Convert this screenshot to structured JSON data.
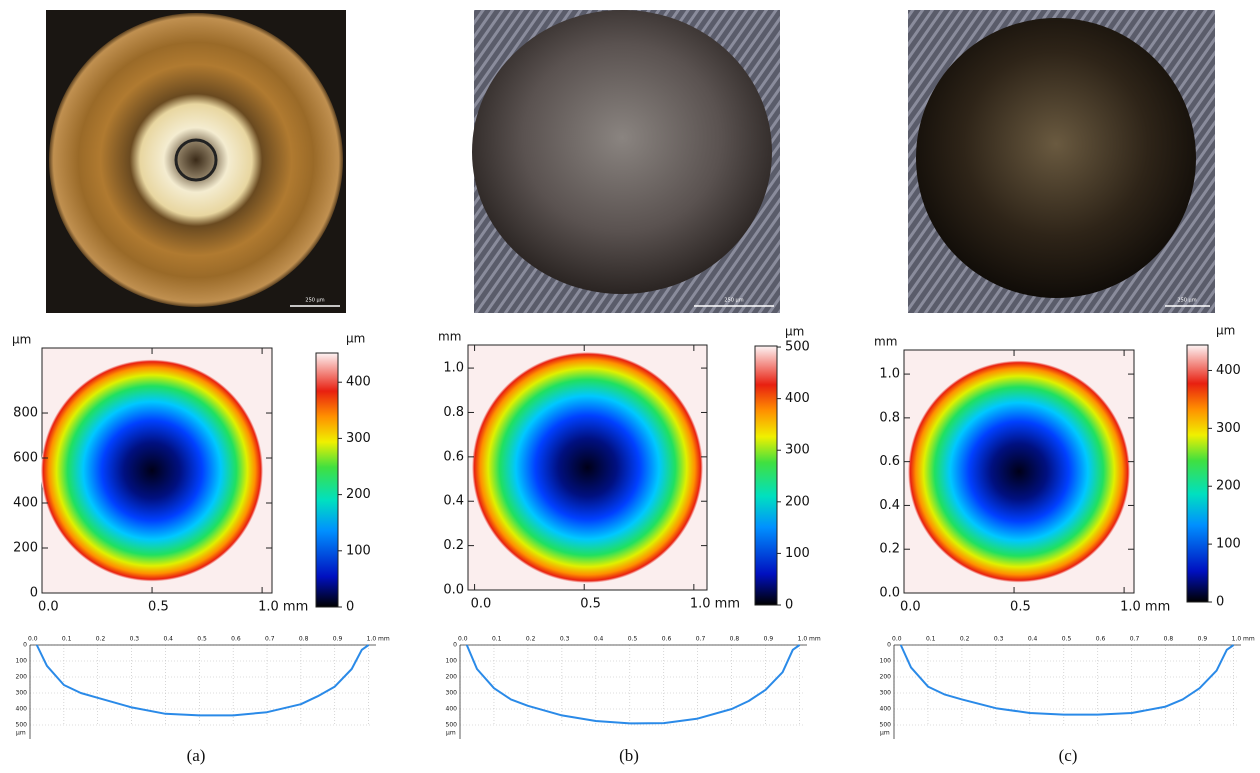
{
  "panels": [
    {
      "caption": "(a)",
      "photo": {
        "scale_label": "250 µm"
      },
      "height_map": {
        "y_unit": "µm",
        "xlim": [
          0,
          1.045
        ],
        "ylim": [
          0,
          1089
        ],
        "xticks": [
          {
            "value": 0,
            "label": "0.0"
          },
          0.5,
          {
            "value": 1,
            "label": "1.0 mm"
          }
        ],
        "yticks": [
          0,
          200,
          400,
          600,
          800
        ],
        "colorbar": {
          "unit": "µm",
          "lim": [
            0,
            452
          ],
          "ticks": [
            0,
            100,
            200,
            300,
            400
          ]
        }
      },
      "profile": {
        "y_unit": "µm",
        "xlim": [
          0,
          1.01
        ],
        "ylim": [
          0,
          500
        ],
        "xticks": [
          {
            "value": 0,
            "label": "0.0"
          },
          0.1,
          0.2,
          0.3,
          0.4,
          0.5,
          0.6,
          0.7,
          0.8,
          0.9,
          {
            "value": 1,
            "label": "1.0 mm"
          }
        ],
        "yticks": [
          0,
          100,
          200,
          300,
          400,
          500
        ],
        "x": [
          0.02,
          0.05,
          0.1,
          0.15,
          0.2,
          0.3,
          0.4,
          0.5,
          0.6,
          0.7,
          0.8,
          0.85,
          0.9,
          0.95,
          0.98,
          1.0
        ],
        "values": [
          0,
          130,
          250,
          300,
          330,
          390,
          430,
          440,
          440,
          420,
          370,
          320,
          260,
          150,
          30,
          0
        ]
      }
    },
    {
      "caption": "(b)",
      "photo": {
        "scale_label": "250 µm"
      },
      "height_map": {
        "y_unit": "mm",
        "xlim": [
          -0.03,
          1.06
        ],
        "ylim": [
          0,
          1.104
        ],
        "xticks": [
          {
            "value": 0,
            "label": "0.0"
          },
          0.5,
          {
            "value": 1,
            "label": "1.0 mm"
          }
        ],
        "yticks": [
          {
            "value": 0,
            "label": "0.0"
          },
          0.2,
          0.4,
          0.6,
          0.8,
          {
            "value": 1,
            "label": "1.0"
          }
        ],
        "colorbar": {
          "unit": "µm",
          "lim": [
            0,
            502
          ],
          "ticks": [
            0,
            100,
            200,
            300,
            400,
            500
          ]
        }
      },
      "profile": {
        "y_unit": "µm",
        "xlim": [
          0,
          1.01
        ],
        "ylim": [
          0,
          500
        ],
        "xticks": [
          {
            "value": 0,
            "label": "0.0"
          },
          0.1,
          0.2,
          0.3,
          0.4,
          0.5,
          0.6,
          0.7,
          0.8,
          0.9,
          {
            "value": 1,
            "label": "1.0 mm"
          }
        ],
        "yticks": [
          0,
          100,
          200,
          300,
          400,
          500
        ],
        "x": [
          0.02,
          0.05,
          0.1,
          0.15,
          0.2,
          0.3,
          0.4,
          0.5,
          0.6,
          0.7,
          0.8,
          0.85,
          0.9,
          0.95,
          0.98,
          1.0
        ],
        "values": [
          0,
          150,
          270,
          340,
          380,
          440,
          475,
          490,
          488,
          460,
          400,
          350,
          280,
          170,
          30,
          0
        ]
      }
    },
    {
      "caption": "(c)",
      "photo": {
        "scale_label": "250 µm"
      },
      "height_map": {
        "y_unit": "mm",
        "xlim": [
          0,
          1.045
        ],
        "ylim": [
          0,
          1.11
        ],
        "xticks": [
          {
            "value": 0,
            "label": "0.0"
          },
          0.5,
          {
            "value": 1,
            "label": "1.0 mm"
          }
        ],
        "yticks": [
          {
            "value": 0,
            "label": "0.0"
          },
          0.2,
          0.4,
          0.6,
          0.8,
          {
            "value": 1,
            "label": "1.0"
          }
        ],
        "colorbar": {
          "unit": "µm",
          "lim": [
            0,
            444
          ],
          "ticks": [
            0,
            100,
            200,
            300,
            400
          ]
        }
      },
      "profile": {
        "y_unit": "µm",
        "xlim": [
          0,
          1.01
        ],
        "ylim": [
          0,
          500
        ],
        "xticks": [
          {
            "value": 0,
            "label": "0.0"
          },
          0.1,
          0.2,
          0.3,
          0.4,
          0.5,
          0.6,
          0.7,
          0.8,
          0.9,
          {
            "value": 1,
            "label": "1.0 mm"
          }
        ],
        "yticks": [
          0,
          100,
          200,
          300,
          400,
          500
        ],
        "x": [
          0.02,
          0.05,
          0.1,
          0.15,
          0.2,
          0.3,
          0.4,
          0.5,
          0.6,
          0.7,
          0.8,
          0.85,
          0.9,
          0.95,
          0.98,
          1.0
        ],
        "values": [
          0,
          140,
          260,
          310,
          340,
          395,
          425,
          435,
          435,
          425,
          385,
          340,
          270,
          160,
          30,
          0
        ]
      }
    }
  ]
}
